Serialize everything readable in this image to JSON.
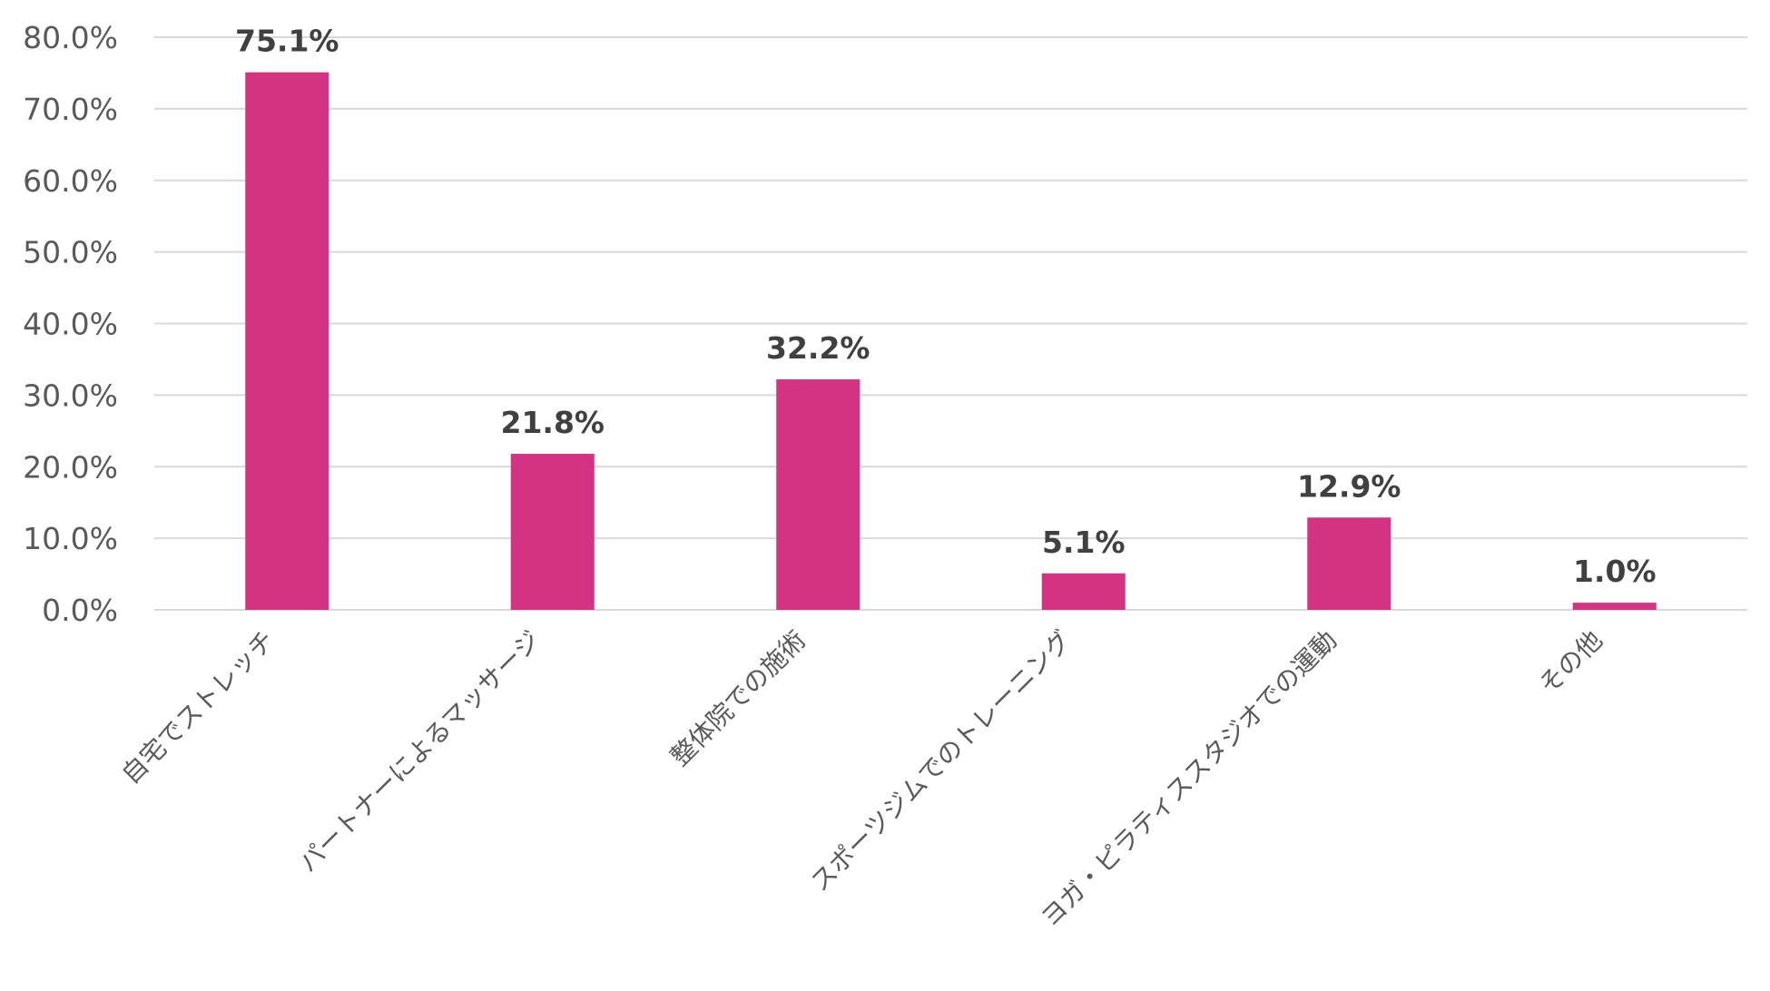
{
  "chart_data": {
    "type": "bar",
    "categories": [
      "自宅でストレッチ",
      "パートナーによるマッサージ",
      "整体院での施術",
      "スポーツジムでのトレーニング",
      "ヨガ・ピラティススタジオでの運動",
      "その他"
    ],
    "values": [
      75.1,
      21.8,
      32.2,
      5.1,
      12.9,
      1.0
    ],
    "data_labels": [
      "75.1%",
      "21.8%",
      "32.2%",
      "5.1%",
      "12.9%",
      "1.0%"
    ],
    "y_ticks": [
      "0.0%",
      "10.0%",
      "20.0%",
      "30.0%",
      "40.0%",
      "50.0%",
      "60.0%",
      "70.0%",
      "80.0%"
    ],
    "ylim": [
      0,
      80
    ],
    "grid": true,
    "legend": "none",
    "bar_color": "#D33382",
    "grid_color": "#D9D9D9"
  }
}
